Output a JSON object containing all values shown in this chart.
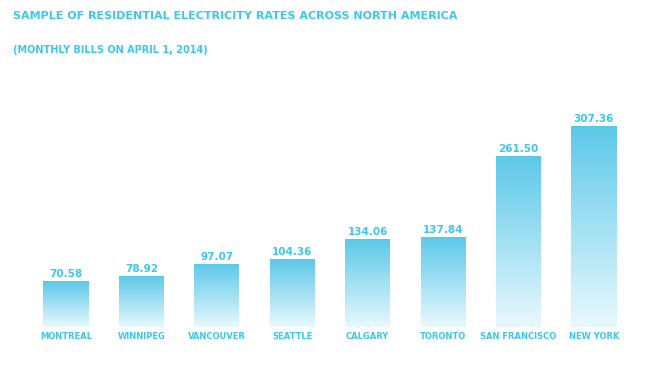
{
  "title": "SAMPLE OF RESIDENTIAL ELECTRICITY RATES ACROSS NORTH AMERICA",
  "subtitle": "(MONTHLY BILLS ON APRIL 1, 2014)",
  "categories": [
    "MONTREAL",
    "WINNIPEG",
    "VANCOUVER",
    "SEATTLE",
    "CALGARY",
    "TORONTO",
    "SAN FRANCISCO",
    "NEW YORK"
  ],
  "values": [
    70.58,
    78.92,
    97.07,
    104.36,
    134.06,
    137.84,
    261.5,
    307.36
  ],
  "bar_color_top": "#5bc8e8",
  "bar_color_bottom": "#e8f8fd",
  "title_color": "#3cc8ee",
  "subtitle_color": "#3cc8ee",
  "value_color": "#3cc8ee",
  "label_color": "#3cc8ee",
  "bg_color": "#ffffff",
  "ylim_max": 340,
  "bar_width": 0.6,
  "title_fontsize": 8.0,
  "subtitle_fontsize": 7.0,
  "value_fontsize": 7.5,
  "label_fontsize": 6.0
}
